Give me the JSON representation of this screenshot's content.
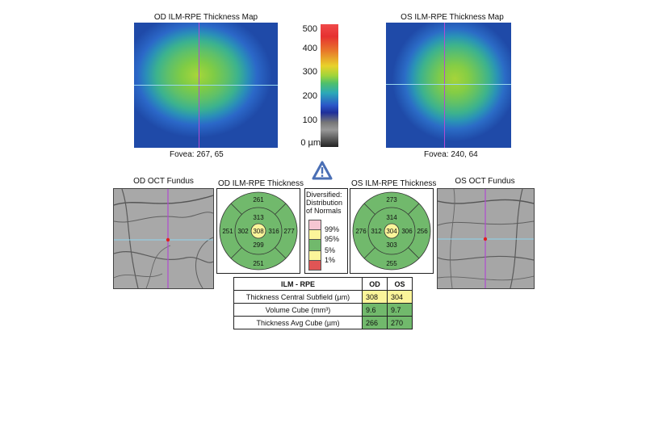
{
  "od_map": {
    "title": "OD ILM-RPE Thickness Map",
    "fovea": "Fovea: 267, 65"
  },
  "os_map": {
    "title": "OS ILM-RPE Thickness Map",
    "fovea": "Fovea: 240, 64"
  },
  "color_scale": {
    "labels": [
      "500",
      "400",
      "300",
      "200",
      "100",
      "0 µm"
    ]
  },
  "od_fundus": {
    "title": "OD OCT Fundus"
  },
  "os_fundus": {
    "title": "OS OCT Fundus"
  },
  "od_thickness": {
    "title": "OD ILM-RPE Thickness",
    "superior_outer": "261",
    "superior_inner": "313",
    "temporal_outer": "251",
    "temporal_inner": "302",
    "center": "308",
    "nasal_inner": "316",
    "nasal_outer": "277",
    "inferior_inner": "299",
    "inferior_outer": "251"
  },
  "os_thickness": {
    "title": "OS ILM-RPE Thickness",
    "superior_outer": "273",
    "superior_inner": "314",
    "nasal_outer": "276",
    "nasal_inner": "312",
    "center": "304",
    "temporal_inner": "306",
    "temporal_outer": "256",
    "inferior_inner": "303",
    "inferior_outer": "255"
  },
  "legend": {
    "title_1": "Diversified:",
    "title_2": "Distribution",
    "title_3": "of Normals",
    "p99": "99%",
    "p95": "95%",
    "p5": "5%",
    "p1": "1%"
  },
  "colors": {
    "normal": "#71b96c",
    "borderline": "#fbf59a",
    "above": "#f6c6d2",
    "below": "#e05555",
    "warning": "#4a6fb5"
  },
  "table": {
    "headers": [
      "ILM - RPE",
      "OD",
      "OS"
    ],
    "rows": [
      {
        "label": "Thickness Central Subfield (µm)",
        "od": "308",
        "os": "304"
      },
      {
        "label": "Volume Cube (mm³)",
        "od": "9.6",
        "os": "9.7"
      },
      {
        "label": "Thickness Avg Cube (µm)",
        "od": "266",
        "os": "270"
      }
    ]
  }
}
